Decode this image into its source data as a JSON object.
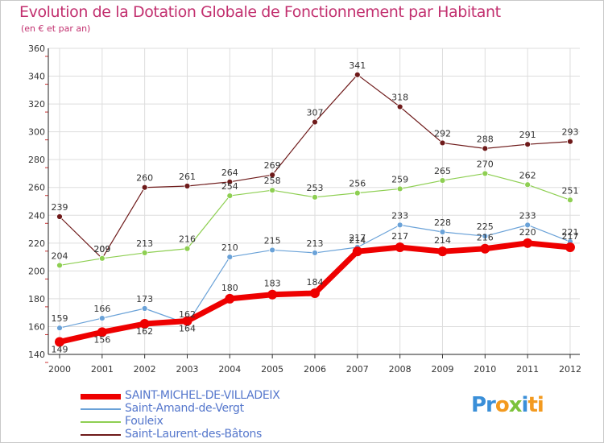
{
  "title": "Evolution de la Dotation Globale de Fonctionnement par Habitant",
  "subtitle": "(en € et par an)",
  "brand": {
    "p1": "Pr",
    "p2": "o",
    "p3": "x",
    "p4": "i",
    "p5": "ti"
  },
  "chart_data": {
    "type": "line",
    "title": "Evolution de la Dotation Globale de Fonctionnement par Habitant",
    "ylabel": "(en € et par an)",
    "xlabel": "",
    "ylim": [
      140,
      360
    ],
    "yticks": [
      140,
      160,
      180,
      200,
      220,
      240,
      260,
      280,
      300,
      320,
      340,
      360
    ],
    "categories": [
      "2000",
      "2001",
      "2002",
      "2003",
      "2004",
      "2005",
      "2006",
      "2007",
      "2008",
      "2009",
      "2010",
      "2011",
      "2012"
    ],
    "legend_position": "bottom-left",
    "series": [
      {
        "name": "SAINT-MICHEL-DE-VILLADEIX",
        "color": "#ee0000",
        "width": 7,
        "values": [
          149,
          156,
          162,
          164,
          180,
          183,
          184,
          214,
          217,
          214,
          216,
          220,
          217
        ]
      },
      {
        "name": "Saint-Amand-de-Vergt",
        "color": "#6aa2d8",
        "width": 1.2,
        "values": [
          159,
          166,
          173,
          162,
          210,
          215,
          213,
          217,
          233,
          228,
          225,
          233,
          221
        ]
      },
      {
        "name": "Fouleix",
        "color": "#8ecf52",
        "width": 1.2,
        "values": [
          204,
          209,
          213,
          216,
          254,
          258,
          253,
          256,
          259,
          265,
          270,
          262,
          251
        ]
      },
      {
        "name": "Saint-Laurent-des-Bâtons",
        "color": "#6e1a1a",
        "width": 1.2,
        "values": [
          239,
          209,
          260,
          261,
          264,
          269,
          307,
          341,
          318,
          292,
          288,
          291,
          293
        ]
      }
    ]
  }
}
